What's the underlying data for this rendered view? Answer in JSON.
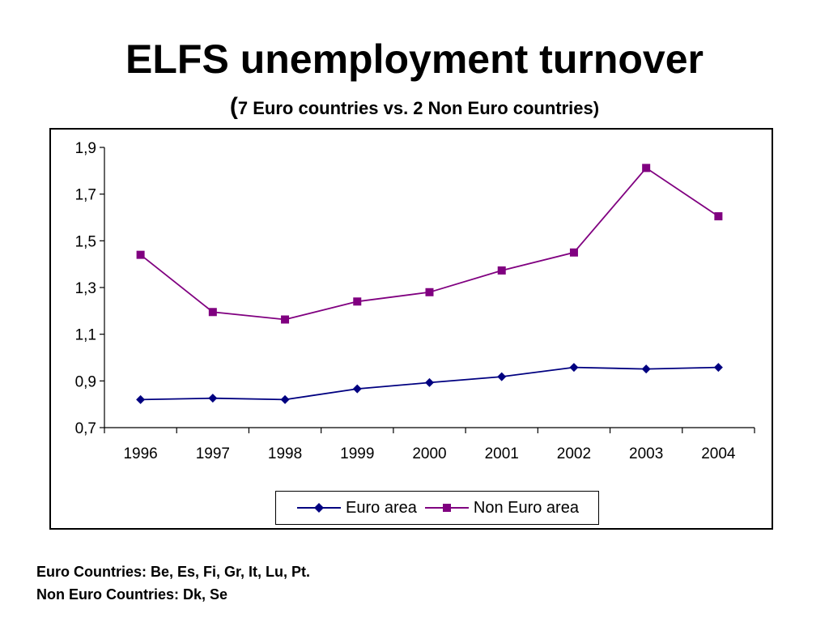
{
  "slide": {
    "title": "ELFS unemployment turnover",
    "subtitle_open": "(",
    "subtitle_text": "7 Euro countries vs. 2 Non Euro countries)",
    "footnotes": [
      "Euro Countries: Be, Es, Fi, Gr, It, Lu, Pt.",
      "Non Euro Countries: Dk, Se"
    ]
  },
  "chart_data": {
    "type": "line",
    "title": "",
    "xlabel": "",
    "ylabel": "",
    "categories": [
      "1996",
      "1997",
      "1998",
      "1999",
      "2000",
      "2001",
      "2002",
      "2003",
      "2004"
    ],
    "ylim": [
      0.7,
      1.9
    ],
    "yticks": [
      0.7,
      0.9,
      1.1,
      1.3,
      1.5,
      1.7,
      1.9
    ],
    "ytick_labels": [
      "0,7",
      "0,9",
      "1,1",
      "1,3",
      "1,5",
      "1,7",
      "1,9"
    ],
    "grid": false,
    "legend_position": "bottom",
    "series": [
      {
        "name": "Euro area",
        "color": "#000080",
        "marker": "diamond",
        "values": [
          0.82,
          0.826,
          0.82,
          0.866,
          0.893,
          0.918,
          0.958,
          0.951,
          0.958
        ]
      },
      {
        "name": "Non Euro area",
        "color": "#800080",
        "marker": "square",
        "values": [
          1.44,
          1.195,
          1.163,
          1.24,
          1.28,
          1.373,
          1.45,
          1.812,
          1.605
        ]
      }
    ]
  }
}
